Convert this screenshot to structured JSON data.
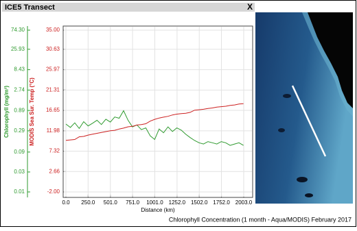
{
  "window": {
    "title": "ICE5 Transect",
    "close": "X"
  },
  "chart_data": {
    "type": "line",
    "x_label": "Distance (km)",
    "y_label": "Chlorophyll (mg/m³)",
    "y2_label": "MODIS Sea Sur. Temp (°C)",
    "x": [
      0,
      50,
      100,
      150,
      200,
      250,
      300,
      350,
      400,
      450,
      500,
      550,
      600,
      650,
      700,
      750,
      800,
      850,
      900,
      950,
      1000,
      1050,
      1100,
      1150,
      1200,
      1250,
      1300,
      1350,
      1400,
      1450,
      1500,
      1550,
      1600,
      1650,
      1700,
      1750,
      1800,
      1850,
      1900,
      1950,
      2000
    ],
    "series": [
      {
        "color": "#2e9a2e",
        "values": [
          0.42,
          0.35,
          0.45,
          0.33,
          0.48,
          0.38,
          0.44,
          0.52,
          0.41,
          0.55,
          0.47,
          0.62,
          0.58,
          0.88,
          0.52,
          0.36,
          0.4,
          0.31,
          0.34,
          0.22,
          0.18,
          0.32,
          0.26,
          0.36,
          0.28,
          0.34,
          0.3,
          0.24,
          0.2,
          0.17,
          0.15,
          0.14,
          0.16,
          0.15,
          0.14,
          0.16,
          0.15,
          0.13,
          0.14,
          0.15,
          0.13
        ]
      },
      {
        "color": "#cc1f1f",
        "axis": "y2",
        "values": [
          9.8,
          9.9,
          10.0,
          10.6,
          10.7,
          11.0,
          11.2,
          11.4,
          11.6,
          11.8,
          12.0,
          12.1,
          12.4,
          12.6,
          12.9,
          13.0,
          13.3,
          13.4,
          13.6,
          14.2,
          14.6,
          14.9,
          15.1,
          15.3,
          15.6,
          15.8,
          15.9,
          16.0,
          16.2,
          16.7,
          16.8,
          16.9,
          17.1,
          17.2,
          17.4,
          17.5,
          17.6,
          17.8,
          17.9,
          18.1,
          18.2
        ]
      }
    ],
    "xlim": [
      0,
      2003
    ],
    "xticks": [
      {
        "value": 0,
        "label": "0.0"
      },
      {
        "value": 250,
        "label": "250.0"
      },
      {
        "value": 501,
        "label": "501.0"
      },
      {
        "value": 751,
        "label": "751.0"
      },
      {
        "value": 1001,
        "label": "1001.0"
      },
      {
        "value": 1252,
        "label": "1252.0"
      },
      {
        "value": 1502,
        "label": "1502.0"
      },
      {
        "value": 1752,
        "label": "1752.0"
      },
      {
        "value": 2003,
        "label": "2003.0"
      }
    ],
    "ylim": [
      0.01,
      74.3
    ],
    "y_log": true,
    "yticks": [
      0.01,
      0.03,
      0.09,
      0.29,
      0.89,
      2.74,
      8.43,
      25.93,
      {
        "value": 74.3,
        "label": "74.30"
      }
    ],
    "y2lim": [
      -2,
      35
    ],
    "y2ticks": [
      {
        "value": -2,
        "label": "-2.00"
      },
      2.66,
      7.32,
      11.98,
      16.65,
      21.31,
      25.97,
      30.63,
      {
        "value": 35,
        "label": "35.00"
      }
    ]
  },
  "caption": "Chlorophyll Concentration (1 month - Aqua/MODIS) February 2017"
}
